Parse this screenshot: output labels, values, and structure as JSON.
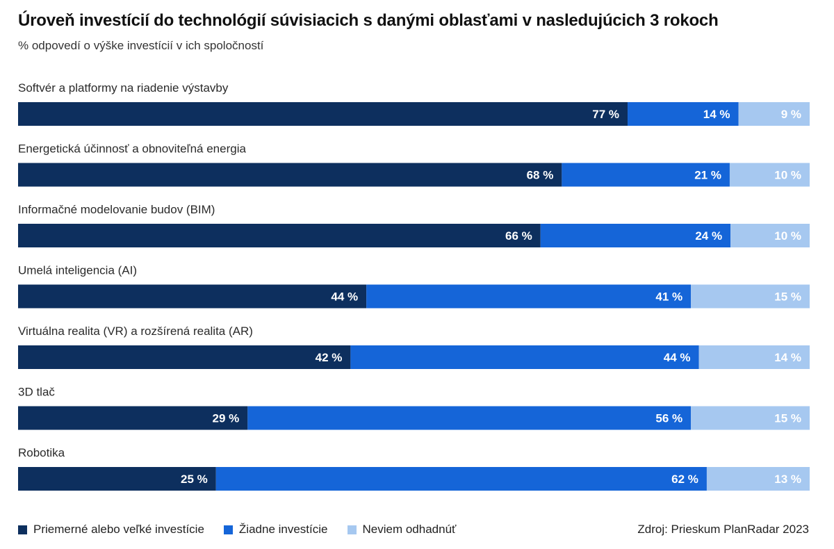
{
  "chart_data": {
    "type": "bar",
    "orientation": "horizontal-stacked-100",
    "title": "Úroveň investícií do technológií súvisiacich s danými oblasťami v nasledujúcich 3 rokoch",
    "subtitle": "% odpovedí o výške investícií v ich spoločností",
    "categories": [
      "Softvér a platformy na riadenie výstavby",
      "Energetická účinnosť a obnoviteľná energia",
      "Informačné modelovanie budov (BIM)",
      "Umelá inteligencia (AI)",
      "Virtuálna realita (VR) a rozšírená realita (AR)",
      "3D tlač",
      "Robotika"
    ],
    "series": [
      {
        "name": "Priemerné alebo veľké investície",
        "color": "#0d2f5e",
        "values": [
          77,
          68,
          66,
          44,
          42,
          29,
          25
        ]
      },
      {
        "name": "Žiadne investície",
        "color": "#1565d8",
        "values": [
          14,
          21,
          24,
          41,
          44,
          56,
          62
        ]
      },
      {
        "name": "Neviem odhadnúť",
        "color": "#a6c8f0",
        "values": [
          9,
          10,
          10,
          15,
          14,
          15,
          13
        ]
      }
    ],
    "value_suffix": " %",
    "xlim": [
      0,
      100
    ],
    "source": "Zdroj: Prieskum PlanRadar 2023"
  }
}
